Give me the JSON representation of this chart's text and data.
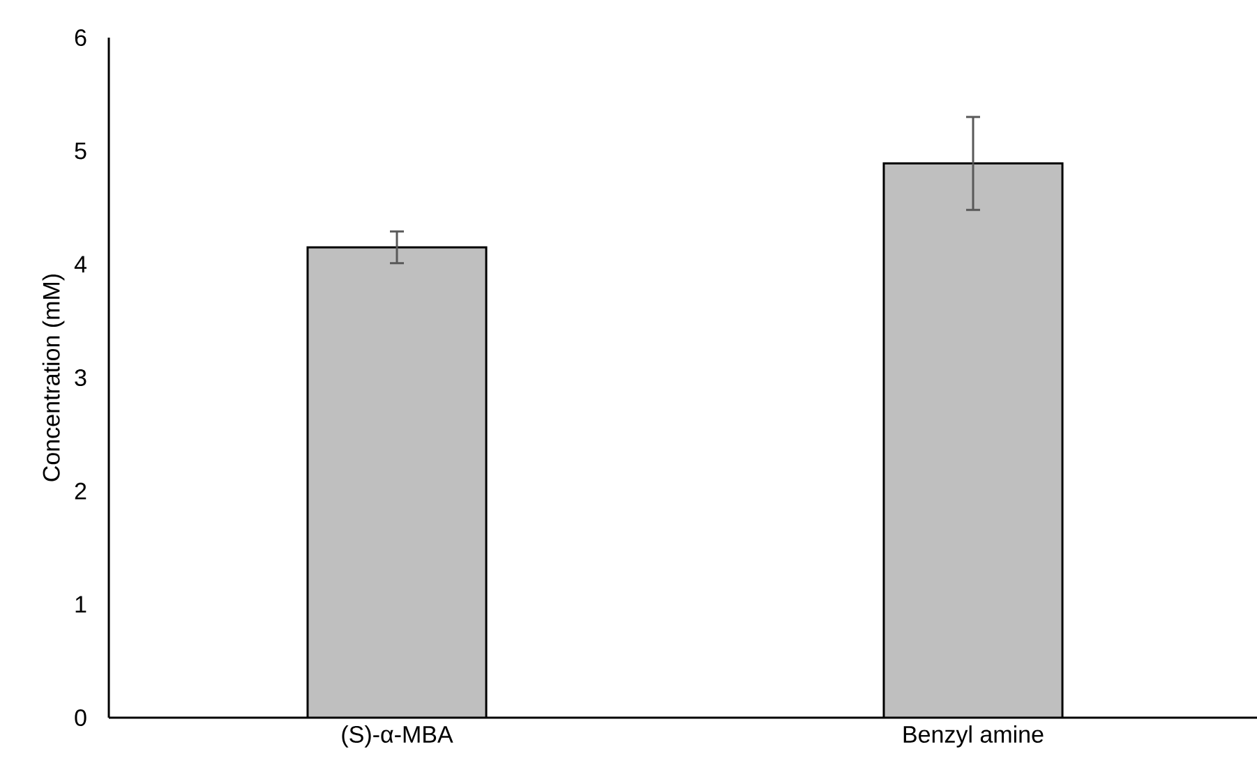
{
  "chart_data": {
    "type": "bar",
    "ylabel": "Concentration (mM)",
    "categories": [
      "(S)-α-MBA",
      "Benzyl amine"
    ],
    "values": [
      4.15,
      4.89
    ],
    "errors": [
      0.14,
      0.41
    ],
    "color": "#bfbfbf",
    "ylim": [
      0,
      6
    ],
    "yticks": [
      0,
      1,
      2,
      3,
      4,
      5,
      6
    ],
    "grid": false
  }
}
